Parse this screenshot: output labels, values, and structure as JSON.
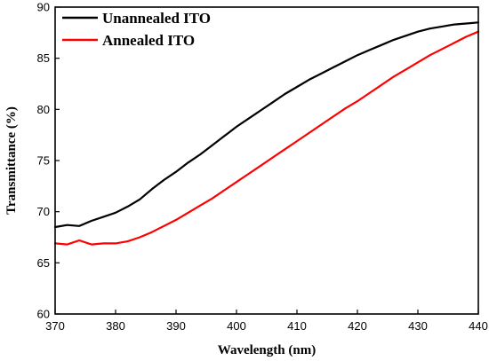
{
  "chart_data": {
    "type": "line",
    "title": "",
    "xlabel": "Wavelength (nm)",
    "ylabel": "Transmittance (%)",
    "xlim": [
      370,
      440
    ],
    "ylim": [
      60,
      90
    ],
    "xticks": [
      370,
      380,
      390,
      400,
      410,
      420,
      430,
      440
    ],
    "yticks": [
      60,
      65,
      70,
      75,
      80,
      85,
      90
    ],
    "grid": false,
    "legend_position": "top-left",
    "series": [
      {
        "name": "Unannealed ITO",
        "color": "#000000",
        "x": [
          370,
          372,
          374,
          376,
          378,
          380,
          382,
          384,
          386,
          388,
          390,
          392,
          394,
          396,
          398,
          400,
          402,
          404,
          406,
          408,
          410,
          412,
          414,
          416,
          418,
          420,
          422,
          424,
          426,
          428,
          430,
          432,
          434,
          436,
          438,
          440
        ],
        "y": [
          68.5,
          68.7,
          68.6,
          69.1,
          69.5,
          69.9,
          70.5,
          71.2,
          72.2,
          73.1,
          73.9,
          74.8,
          75.6,
          76.5,
          77.4,
          78.3,
          79.1,
          79.9,
          80.7,
          81.5,
          82.2,
          82.9,
          83.5,
          84.1,
          84.7,
          85.3,
          85.8,
          86.3,
          86.8,
          87.2,
          87.6,
          87.9,
          88.1,
          88.3,
          88.4,
          88.5
        ]
      },
      {
        "name": "Annealed ITO",
        "color": "#ff0000",
        "x": [
          370,
          372,
          374,
          376,
          378,
          380,
          382,
          384,
          386,
          388,
          390,
          392,
          394,
          396,
          398,
          400,
          402,
          404,
          406,
          408,
          410,
          412,
          414,
          416,
          418,
          420,
          422,
          424,
          426,
          428,
          430,
          432,
          434,
          436,
          438,
          440
        ],
        "y": [
          66.9,
          66.8,
          67.2,
          66.8,
          66.9,
          66.9,
          67.1,
          67.5,
          68.0,
          68.6,
          69.2,
          69.9,
          70.6,
          71.3,
          72.1,
          72.9,
          73.7,
          74.5,
          75.3,
          76.1,
          76.9,
          77.7,
          78.5,
          79.3,
          80.1,
          80.8,
          81.6,
          82.4,
          83.2,
          83.9,
          84.6,
          85.3,
          85.9,
          86.5,
          87.1,
          87.6
        ]
      }
    ]
  }
}
